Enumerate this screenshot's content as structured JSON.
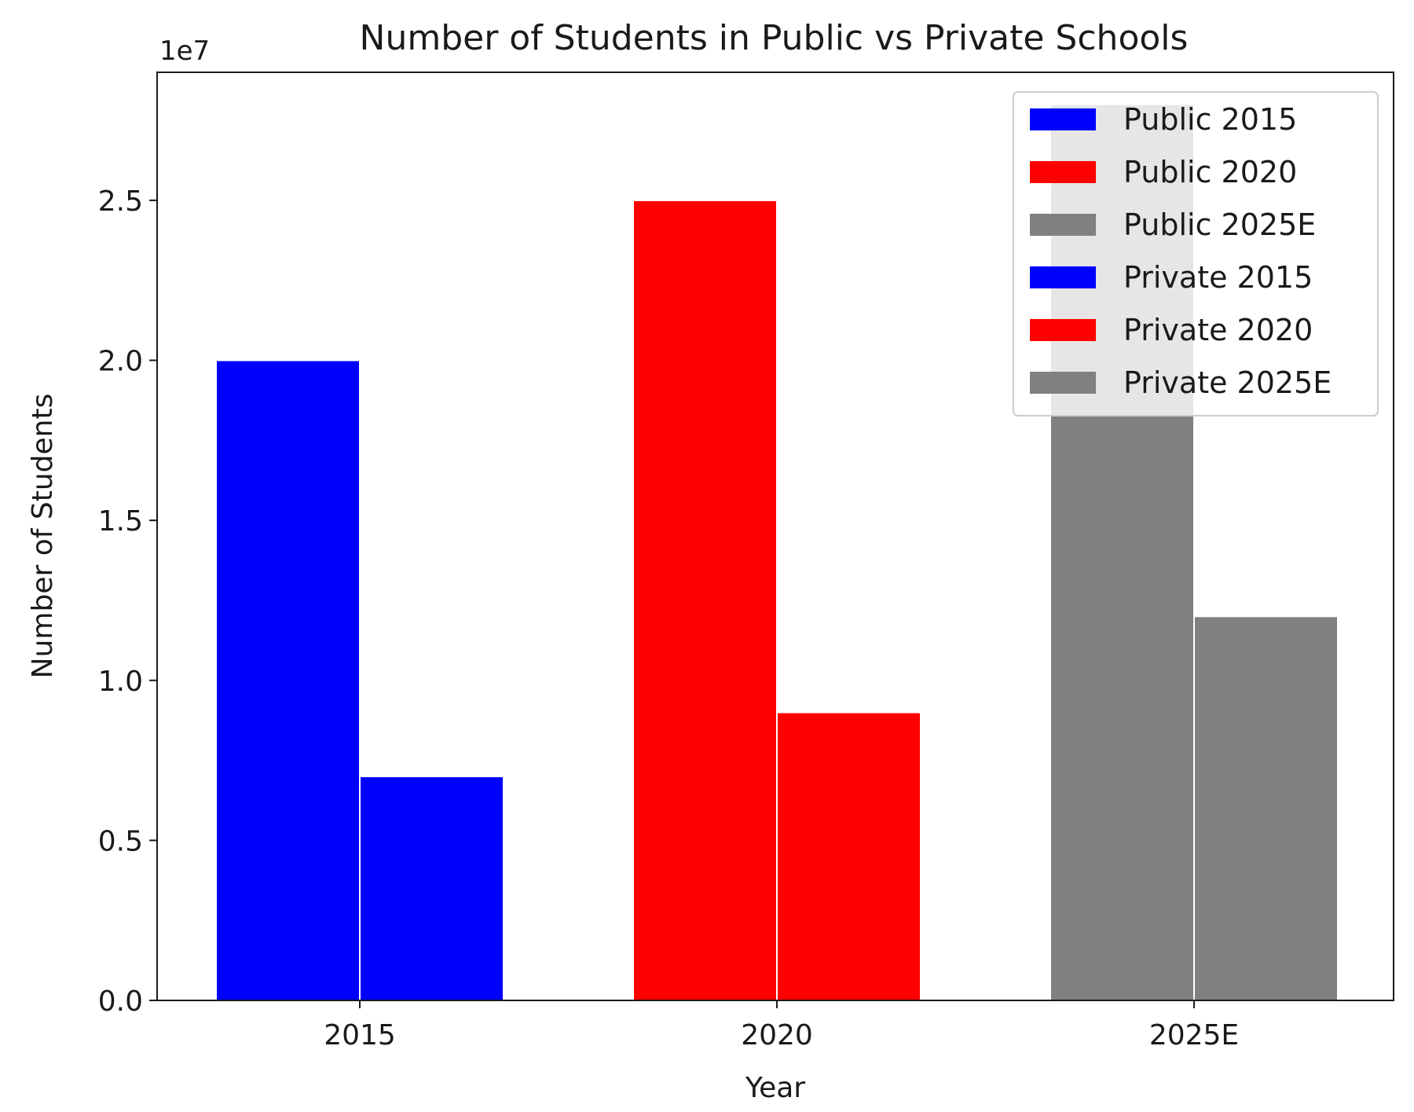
{
  "chart_data": {
    "type": "bar",
    "title": "Number of Students in Public vs Private Schools",
    "xlabel": "Year",
    "ylabel": "Number of Students",
    "y_offset_label": "1e7",
    "categories": [
      "2015",
      "2020",
      "2025E"
    ],
    "yticks": [
      0,
      5000000,
      10000000,
      15000000,
      20000000,
      25000000
    ],
    "ytick_labels": [
      "0.0",
      "0.5",
      "1.0",
      "1.5",
      "2.0",
      "2.5"
    ],
    "ylim": [
      0,
      29000000
    ],
    "grid": false,
    "legend_position": "top-right",
    "series": [
      {
        "name": "Public 2015",
        "category": "2015",
        "group": "public",
        "value": 20000000,
        "color": "#0000ff"
      },
      {
        "name": "Public 2020",
        "category": "2020",
        "group": "public",
        "value": 25000000,
        "color": "#ff0000"
      },
      {
        "name": "Public 2025E",
        "category": "2025E",
        "group": "public",
        "value": 28000000,
        "color": "#808080"
      },
      {
        "name": "Private 2015",
        "category": "2015",
        "group": "private",
        "value": 7000000,
        "color": "#0000ff"
      },
      {
        "name": "Private 2020",
        "category": "2020",
        "group": "private",
        "value": 9000000,
        "color": "#ff0000"
      },
      {
        "name": "Private 2025E",
        "category": "2025E",
        "group": "private",
        "value": 12000000,
        "color": "#808080"
      }
    ]
  }
}
